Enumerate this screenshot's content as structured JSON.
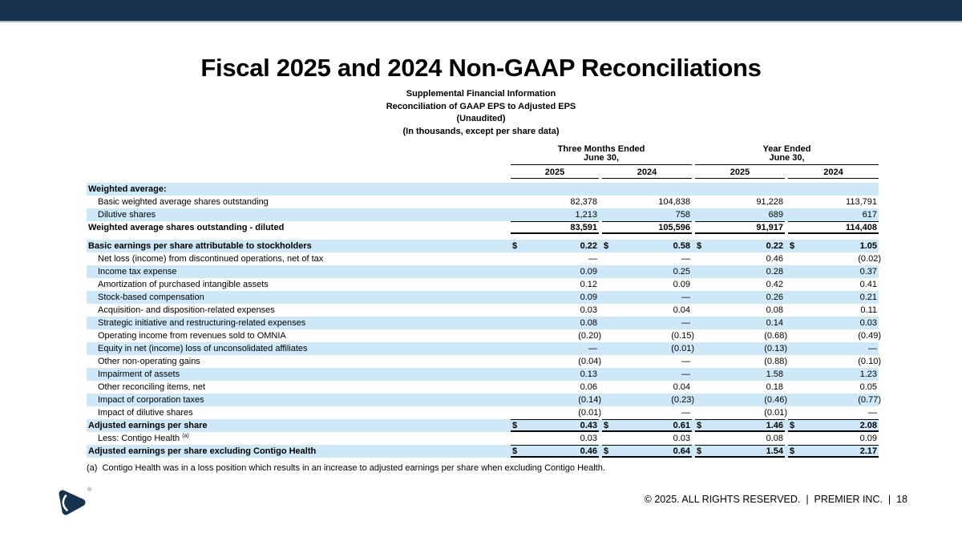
{
  "page": {
    "title": "Fiscal 2025 and 2024 Non-GAAP Reconciliations",
    "subtitle_lines": [
      "Supplemental Financial Information",
      "Reconciliation of GAAP EPS to Adjusted EPS",
      "(Unaudited)",
      "(In thousands, except per share data)"
    ],
    "footnote": "(a)  Contigo Health was in a loss position which results in an increase to adjusted earnings per share when excluding Contigo Health.",
    "footer_text": "© 2025. ALL RIGHTS RESERVED.  |  PREMIER INC.  |  18",
    "logo_trademark": "®"
  },
  "colors": {
    "brand_navy": "#17334E",
    "row_shade_blue": "#CEE8F8"
  },
  "table": {
    "column_groups": [
      {
        "line1": "Three Months Ended",
        "line2": "June 30,"
      },
      {
        "line1": "Year Ended",
        "line2": "June 30,"
      }
    ],
    "year_columns": [
      "2025",
      "2024",
      "2025",
      "2024"
    ],
    "rows": [
      {
        "label": "Weighted average:",
        "bold": true,
        "shade": true,
        "values": [
          "",
          "",
          "",
          ""
        ]
      },
      {
        "label": "Basic weighted average shares outstanding",
        "indent": true,
        "values": [
          "82,378",
          "104,838",
          "91,228",
          "113,791"
        ]
      },
      {
        "label": "Dilutive shares",
        "indent": true,
        "shade": true,
        "values": [
          "1,213",
          "758",
          "689",
          "617"
        ]
      },
      {
        "label": "Weighted average shares outstanding - diluted",
        "bold": true,
        "top_rule": true,
        "bottom_rule": true,
        "values": [
          "83,591",
          "105,596",
          "91,917",
          "114,408"
        ]
      },
      {
        "label": "Basic earnings per share attributable to stockholders",
        "bold": true,
        "shade": true,
        "dollar": true,
        "gap_before": true,
        "values": [
          "0.22",
          "0.58",
          "0.22",
          "1.05"
        ]
      },
      {
        "label": "Net loss (income) from discontinued operations, net of tax",
        "indent": true,
        "values": [
          "—",
          "—",
          "0.46",
          "(0.02)"
        ]
      },
      {
        "label": "Income tax expense",
        "indent": true,
        "shade": true,
        "values": [
          "0.09",
          "0.25",
          "0.28",
          "0.37"
        ]
      },
      {
        "label": "Amortization of purchased intangible assets",
        "indent": true,
        "values": [
          "0.12",
          "0.09",
          "0.42",
          "0.41"
        ]
      },
      {
        "label": "Stock-based compensation",
        "indent": true,
        "shade": true,
        "values": [
          "0.09",
          "—",
          "0.26",
          "0.21"
        ]
      },
      {
        "label": "Acquisition- and disposition-related expenses",
        "indent": true,
        "values": [
          "0.03",
          "0.04",
          "0.08",
          "0.11"
        ]
      },
      {
        "label": "Strategic initiative and restructuring-related expenses",
        "indent": true,
        "shade": true,
        "values": [
          "0.08",
          "—",
          "0.14",
          "0.03"
        ]
      },
      {
        "label": "Operating income from revenues sold to OMNIA",
        "indent": true,
        "values": [
          "(0.20)",
          "(0.15)",
          "(0.68)",
          "(0.49)"
        ]
      },
      {
        "label": "Equity in net (income) loss of unconsolidated affiliates",
        "indent": true,
        "shade": true,
        "values": [
          "—",
          "(0.01)",
          "(0.13)",
          "—"
        ]
      },
      {
        "label": "Other non-operating gains",
        "indent": true,
        "values": [
          "(0.04)",
          "—",
          "(0.88)",
          "(0.10)"
        ]
      },
      {
        "label": "Impairment of assets",
        "indent": true,
        "shade": true,
        "values": [
          "0.13",
          "—",
          "1.58",
          "1.23"
        ]
      },
      {
        "label": "Other reconciling items, net",
        "indent": true,
        "values": [
          "0.06",
          "0.04",
          "0.18",
          "0.05"
        ]
      },
      {
        "label": "Impact of corporation taxes",
        "indent": true,
        "shade": true,
        "values": [
          "(0.14)",
          "(0.23)",
          "(0.46)",
          "(0.77)"
        ]
      },
      {
        "label": "Impact of dilutive shares",
        "indent": true,
        "values": [
          "(0.01)",
          "—",
          "(0.01)",
          "—"
        ]
      },
      {
        "label": "Adjusted earnings per share",
        "bold": true,
        "shade": true,
        "dollar": true,
        "top_rule": true,
        "bottom_rule": true,
        "values": [
          "0.43",
          "0.61",
          "1.46",
          "2.08"
        ]
      },
      {
        "label": "Less: Contigo Health",
        "sup": "(a)",
        "indent": true,
        "values": [
          "0.03",
          "0.03",
          "0.08",
          "0.09"
        ]
      },
      {
        "label": "Adjusted earnings per share excluding Contigo Health",
        "bold": true,
        "shade": true,
        "dollar": true,
        "top_rule": true,
        "bottom_rule": true,
        "values": [
          "0.46",
          "0.64",
          "1.54",
          "2.17"
        ]
      }
    ]
  }
}
